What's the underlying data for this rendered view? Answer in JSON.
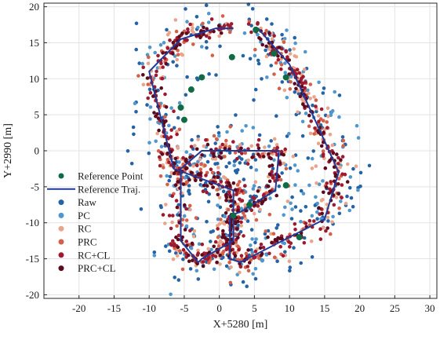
{
  "chart_data": {
    "type": "scatter",
    "xlabel": "X+5280 [m]",
    "ylabel": "Y+2990 [m]",
    "xlim": [
      -25,
      31
    ],
    "ylim": [
      -20.5,
      20.5
    ],
    "xticks": [
      -20,
      -15,
      -10,
      -5,
      0,
      5,
      10,
      15,
      20,
      25,
      30
    ],
    "yticks": [
      -20,
      -15,
      -10,
      -5,
      0,
      5,
      10,
      15,
      20
    ],
    "grid": true,
    "legend_position": "bottom-left",
    "reference_traj": {
      "name": "Reference Traj.",
      "color": "#1f3a9a",
      "x": [
        2,
        -0.5,
        -5.5,
        -10,
        -6.5,
        2,
        2,
        -2.5,
        -3,
        -5.5,
        -5.5,
        -2.5,
        8.5,
        8,
        3,
        1.5,
        1.5,
        3,
        15,
        17,
        14,
        10,
        5.5,
        5
      ],
      "y": [
        17,
        17,
        15.5,
        11,
        -2.5,
        -5.5,
        -12.5,
        -15,
        -15.5,
        -12.5,
        -2.5,
        0,
        0,
        -5.5,
        -8.5,
        -9,
        -15,
        -15.5,
        -9.5,
        -3,
        3.5,
        12,
        17,
        17
      ]
    },
    "reference_points": {
      "name": "Reference Point",
      "color": "#0e6b45",
      "x": [
        1.8,
        -2.5,
        -4,
        -5.5,
        -5,
        2,
        4.3,
        9.5,
        11.4,
        5.2,
        9.5,
        7.8
      ],
      "y": [
        13,
        10.2,
        8.5,
        6,
        4.3,
        -9,
        -7.5,
        -4.8,
        -12,
        16.8,
        10.2,
        13.5
      ]
    },
    "series": [
      {
        "name": "Raw",
        "color": "#2463a6",
        "spread": 2.6,
        "count": 290
      },
      {
        "name": "PC",
        "color": "#4f97cc",
        "spread": 1.8,
        "count": 210
      },
      {
        "name": "RC",
        "color": "#e8a58b",
        "spread": 1.3,
        "count": 230
      },
      {
        "name": "PRC",
        "color": "#d4604a",
        "spread": 1.0,
        "count": 230
      },
      {
        "name": "RC+CL",
        "color": "#9e1a2e",
        "spread": 0.8,
        "count": 330
      },
      {
        "name": "PRC+CL",
        "color": "#5c0a1e",
        "spread": 0.6,
        "count": 280
      }
    ]
  }
}
